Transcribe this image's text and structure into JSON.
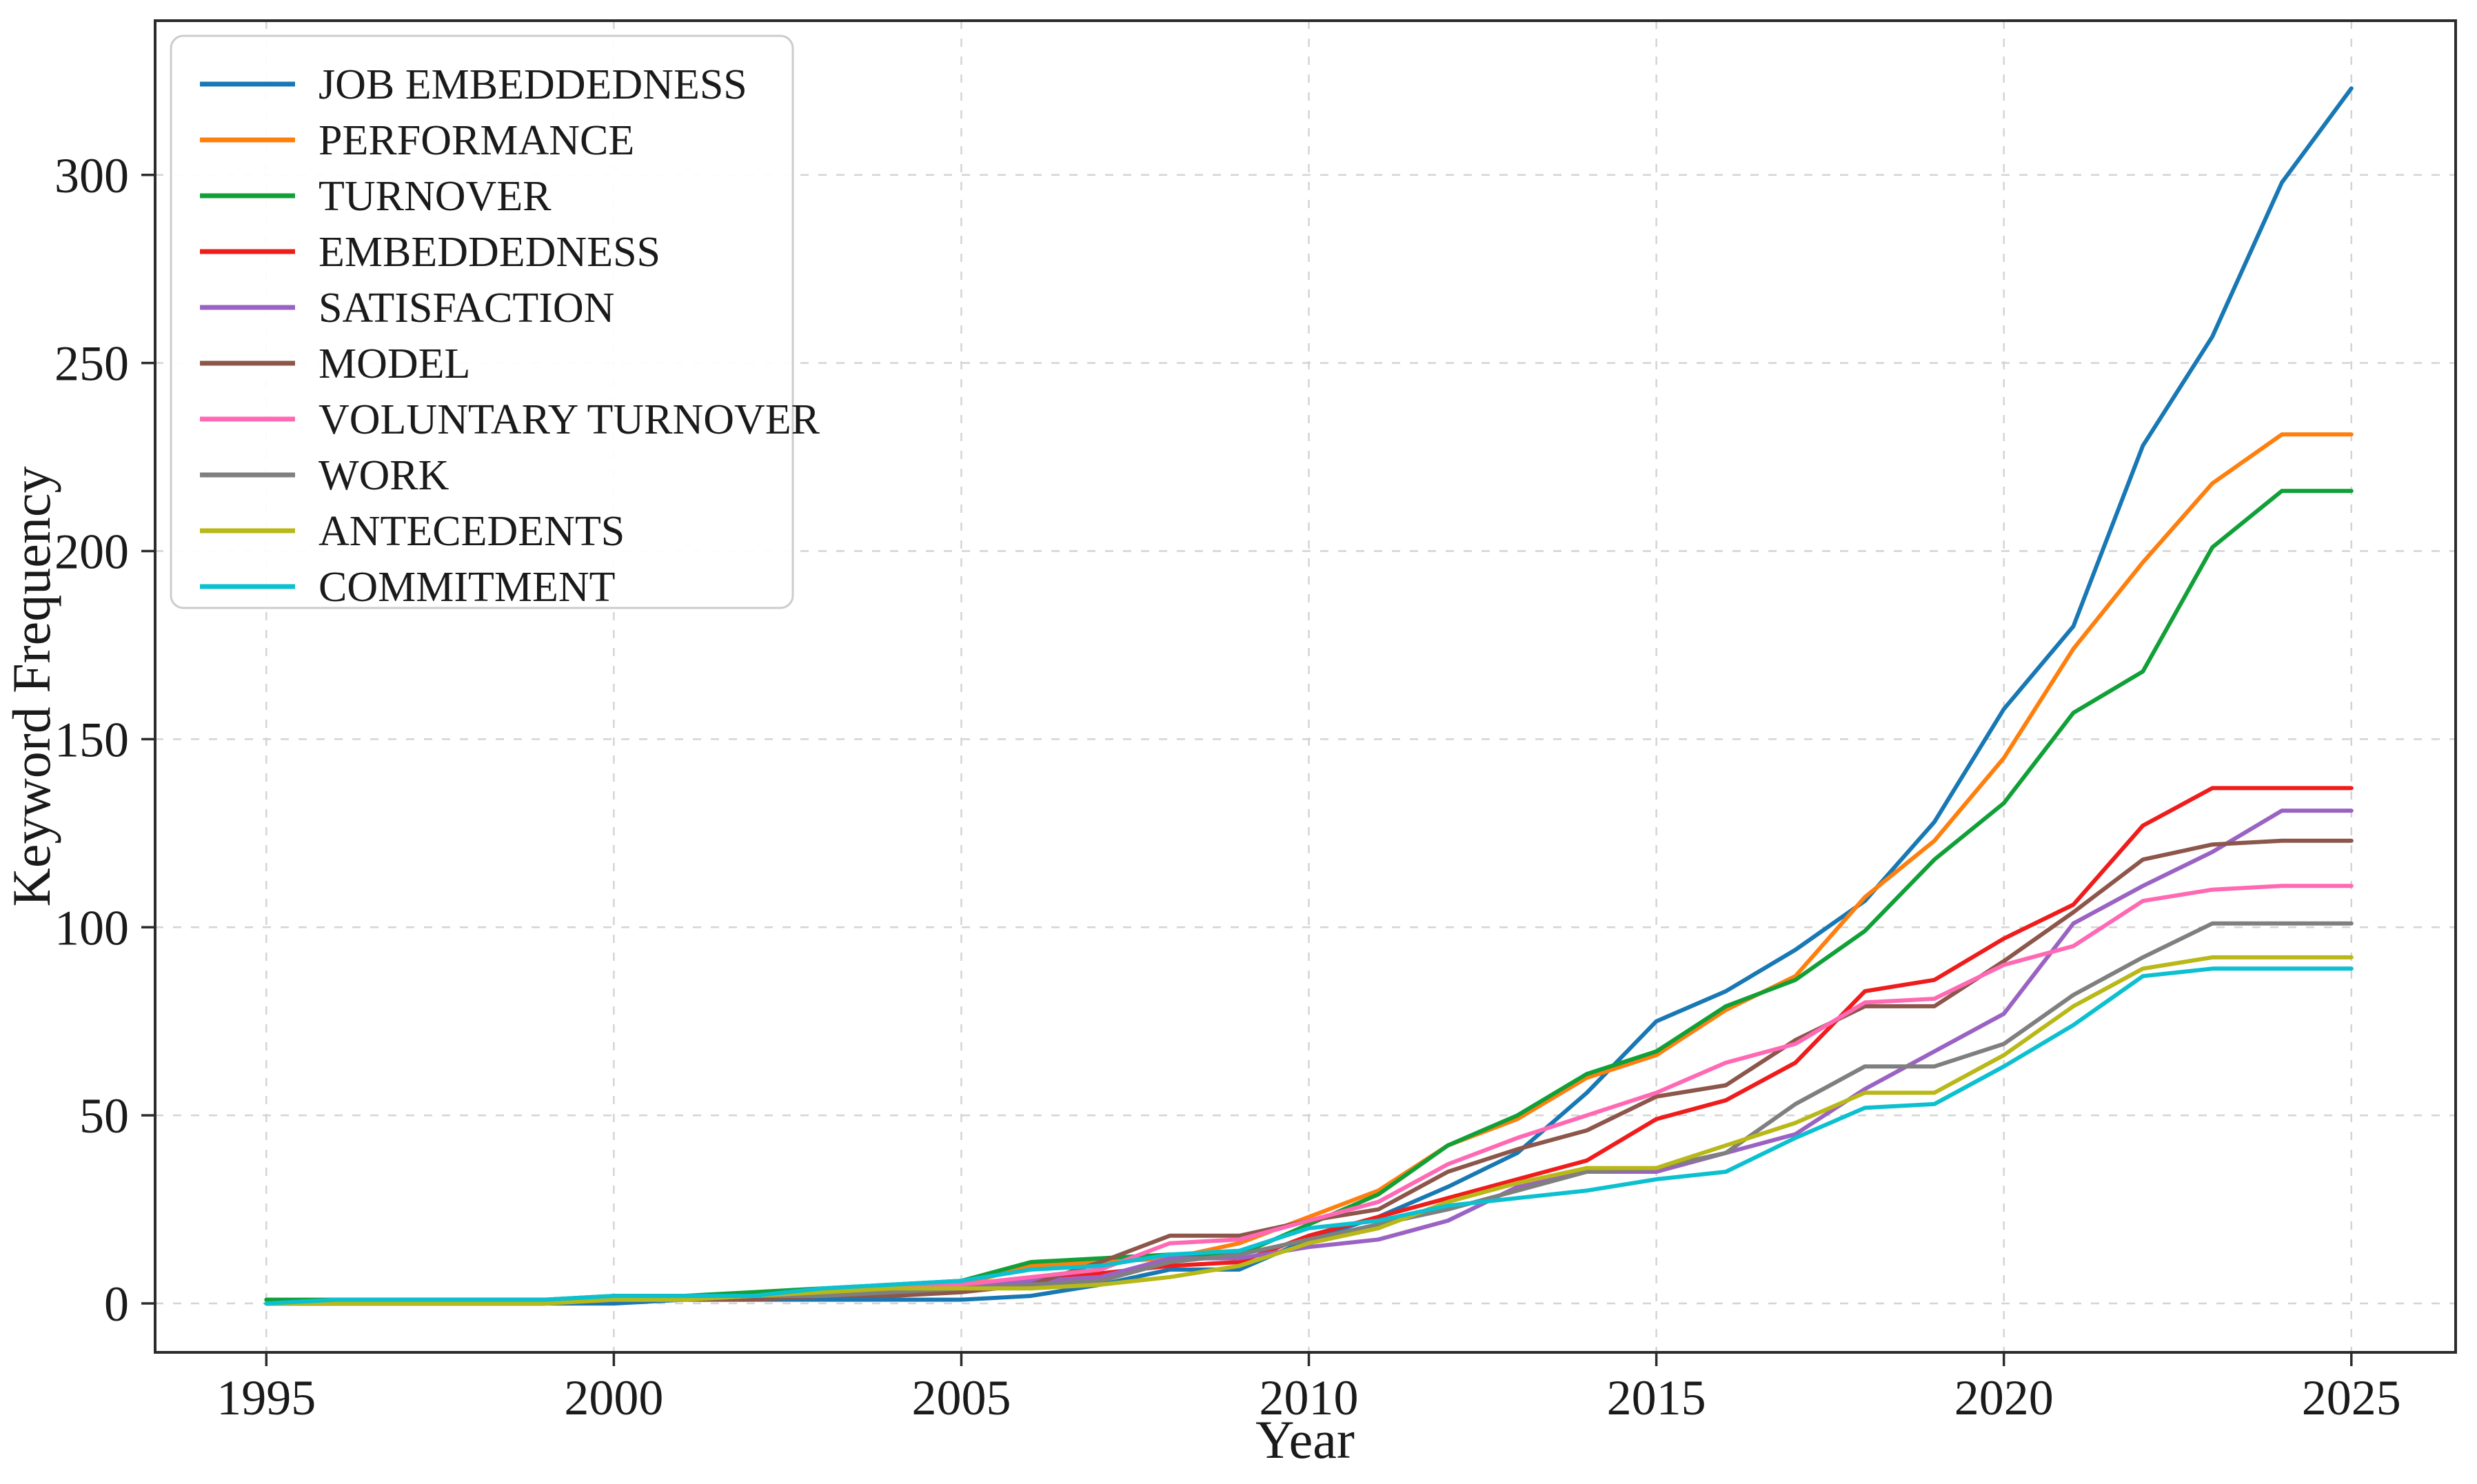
{
  "chart_data": {
    "type": "line",
    "title": "",
    "xlabel": "Year",
    "ylabel": "Keyword Frequency",
    "x": [
      1995,
      1996,
      1997,
      1998,
      1999,
      2000,
      2001,
      2002,
      2003,
      2004,
      2005,
      2006,
      2007,
      2008,
      2009,
      2010,
      2011,
      2012,
      2013,
      2014,
      2015,
      2016,
      2017,
      2018,
      2019,
      2020,
      2021,
      2022,
      2023,
      2024,
      2025
    ],
    "x_ticks": [
      1995,
      2000,
      2005,
      2010,
      2015,
      2020,
      2025
    ],
    "y_ticks": [
      0,
      50,
      100,
      150,
      200,
      250,
      300
    ],
    "xlim": [
      1993.4,
      2026.5
    ],
    "ylim": [
      -13,
      341
    ],
    "grid": "dashed-both",
    "legend_position": "upper-left",
    "series": [
      {
        "name": "JOB EMBEDDEDNESS",
        "color": "#1878b4",
        "values": [
          0,
          0,
          0,
          0,
          0,
          0,
          1,
          1,
          1,
          1,
          1,
          2,
          5,
          9,
          9,
          17,
          23,
          31,
          40,
          56,
          75,
          83,
          94,
          107,
          128,
          158,
          180,
          228,
          257,
          298,
          323
        ]
      },
      {
        "name": "PERFORMANCE",
        "color": "#ff7f0e",
        "values": [
          0,
          0,
          1,
          1,
          1,
          1,
          1,
          2,
          3,
          4,
          5,
          10,
          11,
          12,
          16,
          23,
          30,
          42,
          49,
          60,
          66,
          78,
          87,
          108,
          123,
          145,
          174,
          197,
          218,
          231,
          231
        ]
      },
      {
        "name": "TURNOVER",
        "color": "#10a037",
        "values": [
          1,
          1,
          1,
          1,
          1,
          2,
          2,
          3,
          4,
          5,
          6,
          11,
          12,
          13,
          13,
          21,
          29,
          42,
          50,
          61,
          67,
          79,
          86,
          99,
          118,
          133,
          157,
          168,
          201,
          216,
          216
        ]
      },
      {
        "name": "EMBEDDEDNESS",
        "color": "#ef1c1c",
        "values": [
          0,
          0,
          0,
          0,
          0,
          1,
          1,
          2,
          3,
          4,
          5,
          6,
          8,
          10,
          11,
          18,
          23,
          28,
          33,
          38,
          49,
          54,
          64,
          83,
          86,
          97,
          106,
          127,
          137,
          137,
          137
        ]
      },
      {
        "name": "SATISFACTION",
        "color": "#9a63c3",
        "values": [
          0,
          0,
          0,
          0,
          0,
          1,
          1,
          2,
          3,
          4,
          5,
          6,
          7,
          12,
          12,
          15,
          17,
          22,
          31,
          35,
          35,
          40,
          45,
          57,
          67,
          77,
          101,
          111,
          120,
          131,
          131
        ]
      },
      {
        "name": "MODEL",
        "color": "#8c564b",
        "values": [
          0,
          0,
          0,
          0,
          0,
          1,
          1,
          1,
          2,
          2,
          3,
          5,
          11,
          18,
          18,
          22,
          25,
          35,
          41,
          46,
          55,
          58,
          70,
          79,
          79,
          91,
          104,
          118,
          122,
          123,
          123
        ]
      },
      {
        "name": "VOLUNTARY TURNOVER",
        "color": "#ff69b4",
        "values": [
          0,
          0,
          0,
          0,
          0,
          1,
          1,
          2,
          3,
          4,
          5,
          7,
          9,
          16,
          17,
          22,
          27,
          37,
          44,
          50,
          56,
          64,
          69,
          80,
          81,
          90,
          95,
          107,
          110,
          111,
          111
        ]
      },
      {
        "name": "WORK",
        "color": "#7f7f7f",
        "values": [
          0,
          0,
          0,
          0,
          0,
          1,
          1,
          2,
          2,
          3,
          4,
          5,
          6,
          11,
          13,
          17,
          21,
          25,
          30,
          35,
          36,
          40,
          53,
          63,
          63,
          69,
          82,
          92,
          101,
          101,
          101
        ]
      },
      {
        "name": "ANTECEDENTS",
        "color": "#b8b818",
        "values": [
          0,
          0,
          0,
          0,
          0,
          1,
          1,
          2,
          3,
          4,
          4,
          4,
          5,
          7,
          10,
          16,
          20,
          27,
          32,
          36,
          36,
          42,
          48,
          56,
          56,
          66,
          79,
          89,
          92,
          92,
          92
        ]
      },
      {
        "name": "COMMITMENT",
        "color": "#0cc0d0",
        "values": [
          0,
          1,
          1,
          1,
          1,
          2,
          2,
          2,
          4,
          5,
          6,
          9,
          10,
          13,
          14,
          20,
          22,
          26,
          28,
          30,
          33,
          35,
          44,
          52,
          53,
          63,
          74,
          87,
          89,
          89,
          89
        ]
      }
    ]
  }
}
